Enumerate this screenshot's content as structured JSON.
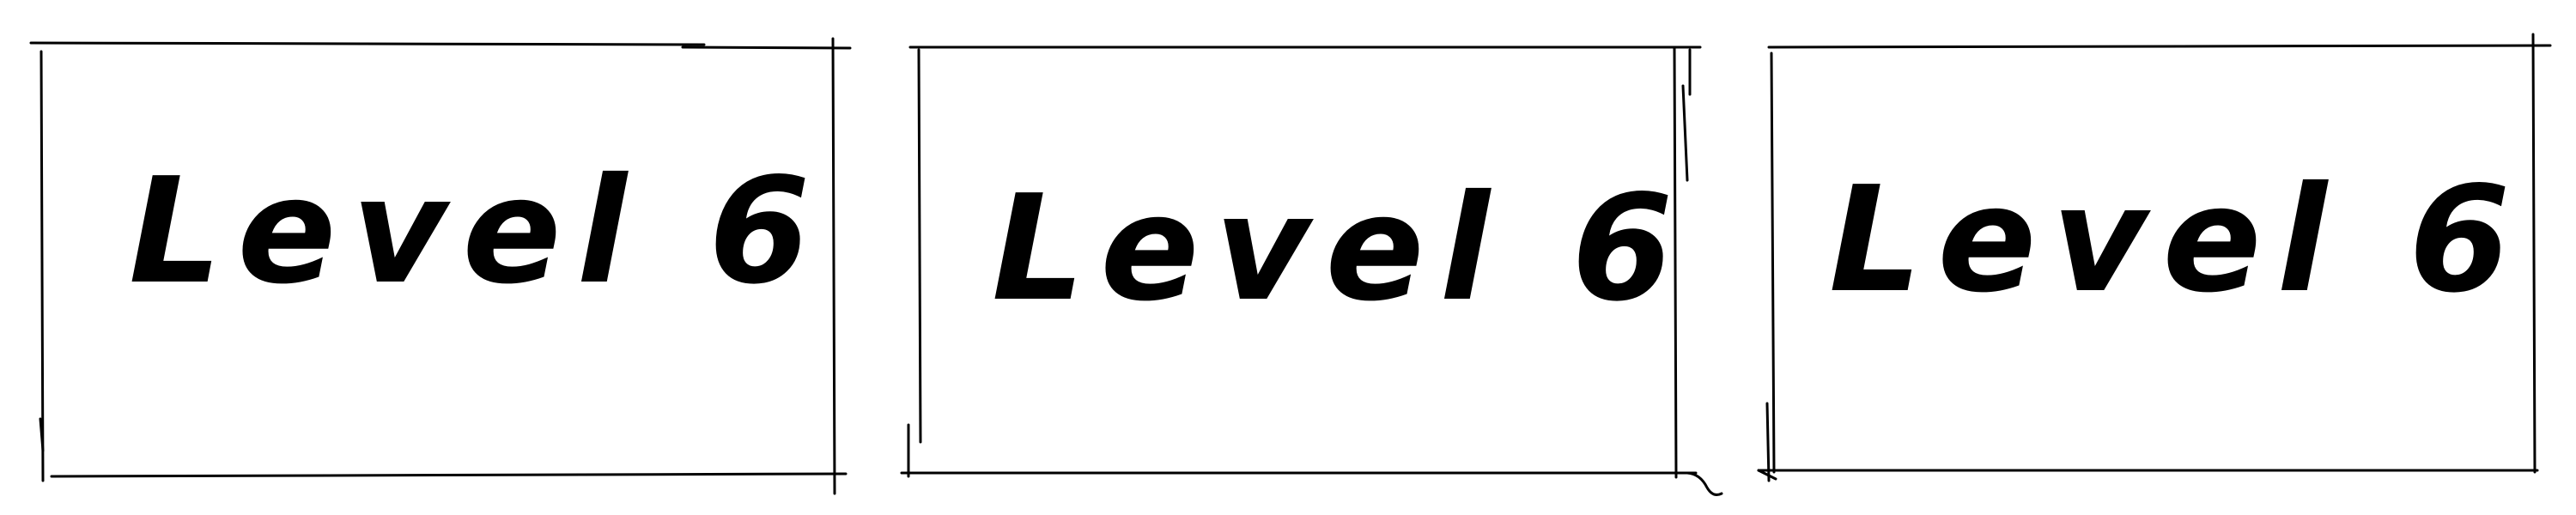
{
  "panels": [
    {
      "label": "Level 6"
    },
    {
      "label": "Level 6"
    },
    {
      "label": "Level 6"
    }
  ],
  "colors": {
    "ink": "#000000",
    "background": "#ffffff"
  }
}
